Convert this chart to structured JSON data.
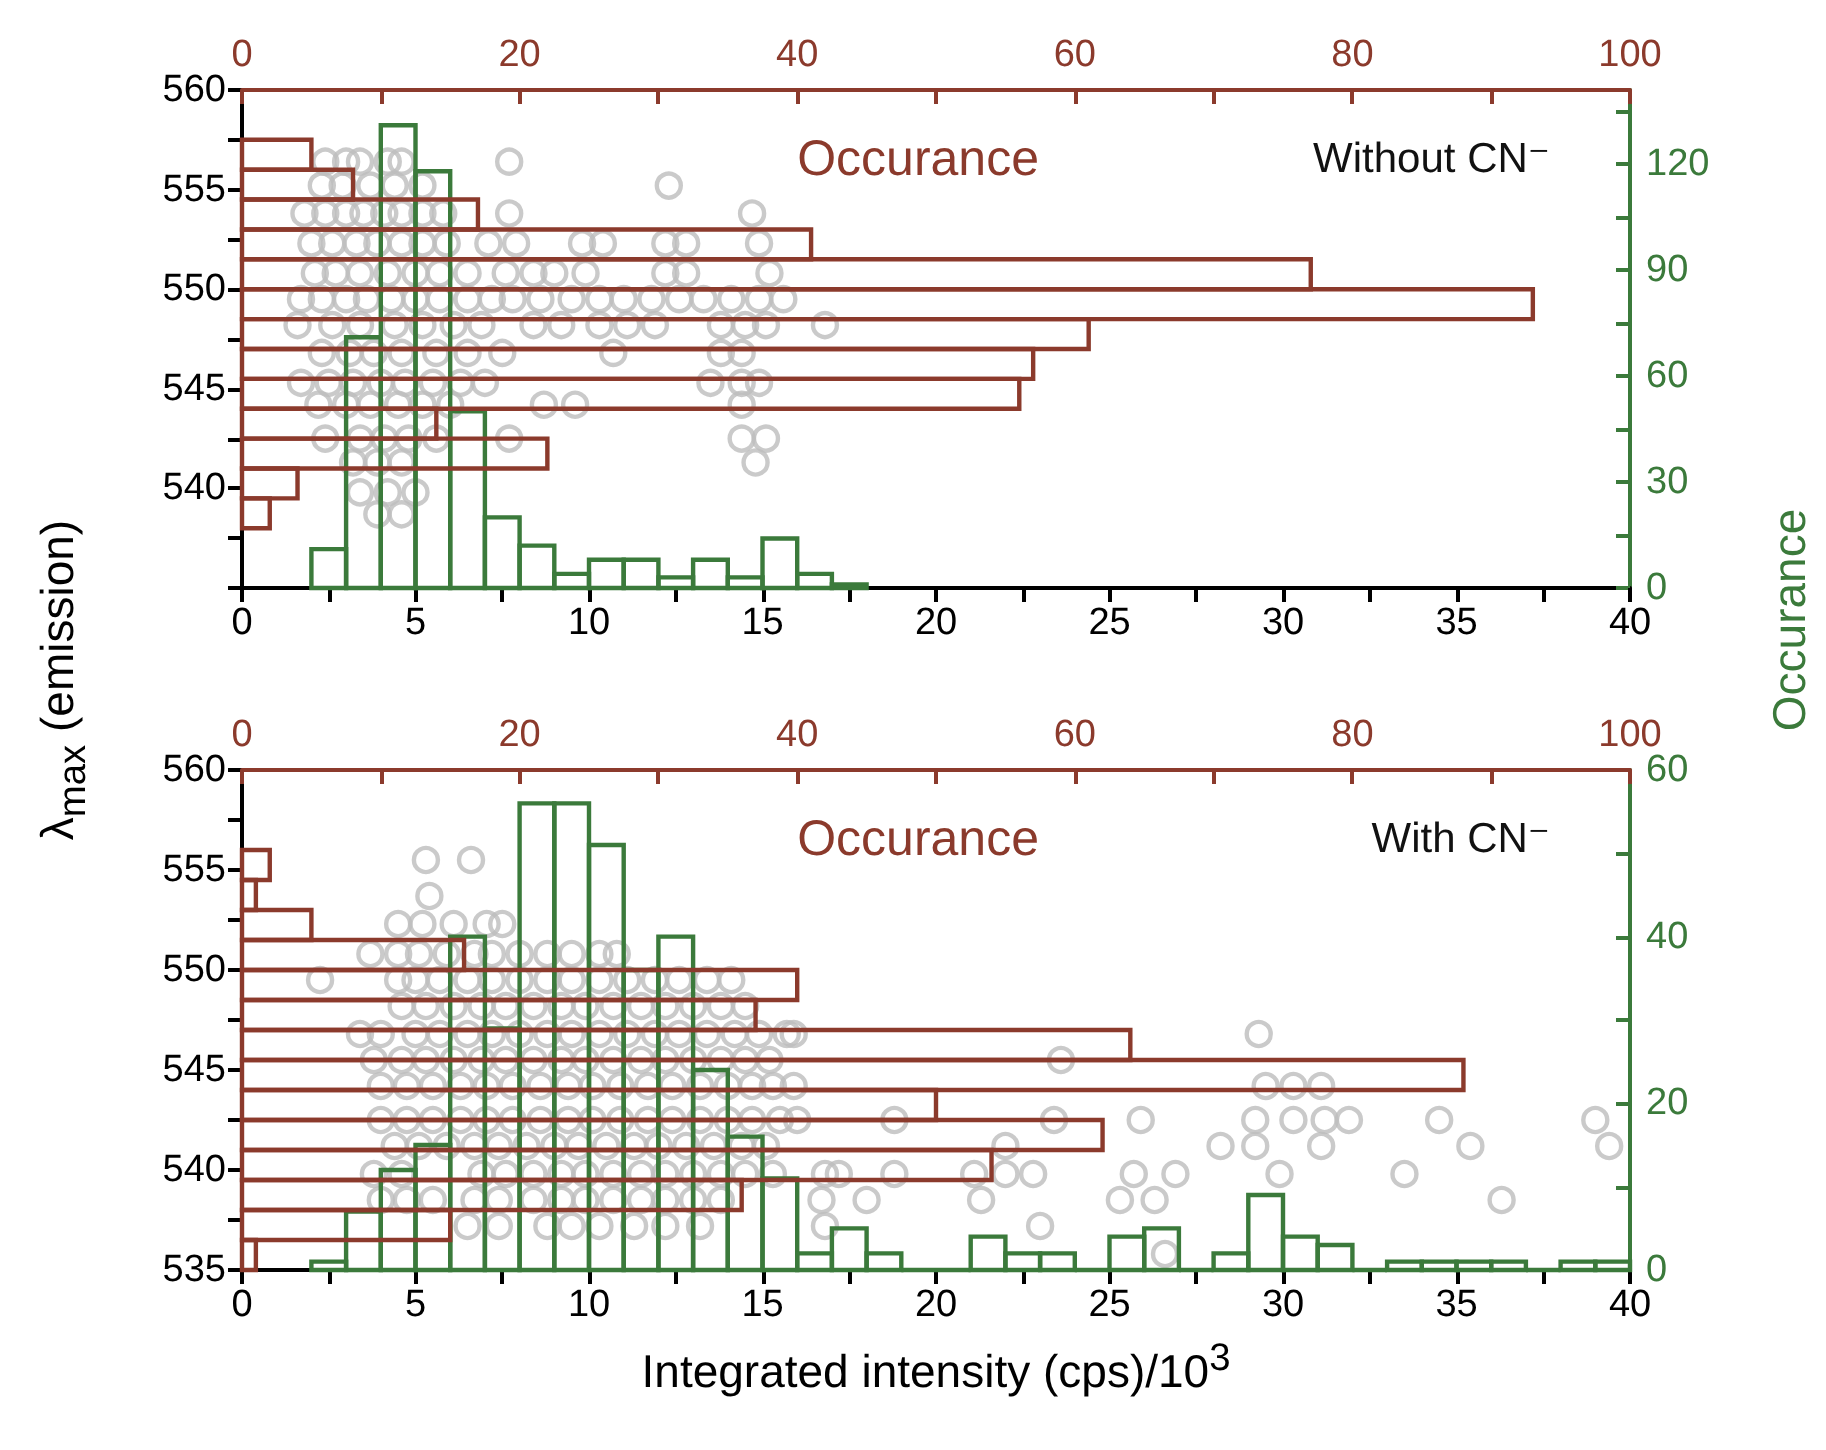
{
  "chart_data": [
    {
      "type": "scatter",
      "ylabel": "λ$_{max}$ (emission)",
      "annotations": [
        "Without CN⁻"
      ],
      "marker": "circle",
      "xlim": [
        0,
        40
      ],
      "xticks": [
        0,
        {
          "value": 2.5,
          "label": null
        },
        5,
        {
          "value": 7.5,
          "label": null
        },
        10,
        {
          "value": 12.5,
          "label": null
        },
        15,
        {
          "value": 17.5,
          "label": null
        },
        20,
        {
          "value": 22.5,
          "label": null
        },
        25,
        {
          "value": 27.5,
          "label": null
        },
        30,
        {
          "value": 32.5,
          "label": null
        },
        35,
        {
          "value": 37.5,
          "label": null
        },
        40
      ],
      "ylim": [
        535,
        560
      ],
      "yticks": [
        {
          "value": 535,
          "label": null
        },
        {
          "value": 537.5,
          "label": null
        },
        540,
        {
          "value": 542.5,
          "label": null
        },
        545,
        {
          "value": 547.5,
          "label": null
        },
        550,
        {
          "value": 552.5,
          "label": null
        },
        555,
        {
          "value": 557.5,
          "label": null
        },
        560
      ],
      "y2lim": [
        0,
        141
      ],
      "y2ticks": [
        0,
        {
          "value": 15,
          "label": null
        },
        30,
        {
          "value": 45,
          "label": null
        },
        60,
        {
          "value": 75,
          "label": null
        },
        90,
        {
          "value": 105,
          "label": null
        },
        120,
        {
          "value": 135,
          "label": null
        }
      ],
      "series": [
        {
          "color": "#bdbdbd",
          "x": [
            2.4,
            3,
            3.4,
            4.2,
            4.6,
            7.7,
            2.3,
            2.9,
            3.7,
            4.4,
            5.2,
            12.3,
            1.8,
            2.4,
            3,
            3.5,
            4.1,
            4.6,
            5.2,
            5.8,
            7.7,
            14.7,
            2,
            2.6,
            3.3,
            3.9,
            4.6,
            5.2,
            5.9,
            7.1,
            7.9,
            9.8,
            10.4,
            12.2,
            12.8,
            14.9,
            2.1,
            2.7,
            3.4,
            4.2,
            5,
            5.7,
            6.5,
            7.6,
            8.4,
            9,
            9.9,
            12.2,
            12.8,
            15.2,
            1.7,
            2.3,
            3,
            3.6,
            4.3,
            5,
            5.7,
            6.5,
            7.2,
            7.8,
            8.6,
            9.5,
            10.3,
            11,
            11.8,
            12.6,
            13.3,
            14.1,
            14.9,
            15.6,
            1.6,
            2.6,
            3.4,
            4.4,
            5.2,
            6.1,
            6.9,
            8.4,
            9.2,
            10.3,
            11.1,
            11.9,
            13.8,
            14.5,
            15.1,
            16.8,
            2.3,
            3.1,
            3.8,
            4.6,
            5.6,
            6.5,
            7.5,
            10.7,
            13.8,
            14.4,
            1.7,
            2.5,
            3.2,
            4,
            4.7,
            5.5,
            6.3,
            7,
            13.5,
            14.4,
            14.9,
            2.2,
            3,
            3.7,
            4.5,
            5.2,
            6,
            8.7,
            9.6,
            14.4,
            2.4,
            3.4,
            4.1,
            4.8,
            5.6,
            7.7,
            14.4,
            15.1,
            3.2,
            3.9,
            4.6,
            14.8,
            3.4,
            4.2,
            5,
            3.9,
            4.6
          ],
          "values": [
            556.4,
            556.4,
            556.4,
            556.4,
            556.4,
            556.4,
            555.2,
            555.2,
            555.2,
            555.2,
            555.2,
            555.2,
            553.8,
            553.8,
            553.8,
            553.8,
            553.8,
            553.8,
            553.8,
            553.8,
            553.8,
            553.8,
            552.3,
            552.3,
            552.3,
            552.3,
            552.3,
            552.3,
            552.3,
            552.3,
            552.3,
            552.3,
            552.3,
            552.3,
            552.3,
            552.3,
            550.8,
            550.8,
            550.8,
            550.8,
            550.8,
            550.8,
            550.8,
            550.8,
            550.8,
            550.8,
            550.8,
            550.8,
            550.8,
            550.8,
            549.5,
            549.5,
            549.5,
            549.5,
            549.5,
            549.5,
            549.5,
            549.5,
            549.5,
            549.5,
            549.5,
            549.5,
            549.5,
            549.5,
            549.5,
            549.5,
            549.5,
            549.5,
            549.5,
            549.5,
            548.2,
            548.2,
            548.2,
            548.2,
            548.2,
            548.2,
            548.2,
            548.2,
            548.2,
            548.2,
            548.2,
            548.2,
            548.2,
            548.2,
            548.2,
            548.2,
            546.8,
            546.8,
            546.8,
            546.8,
            546.8,
            546.8,
            546.8,
            546.8,
            546.8,
            546.8,
            545.3,
            545.3,
            545.3,
            545.3,
            545.3,
            545.3,
            545.3,
            545.3,
            545.3,
            545.3,
            545.3,
            544.2,
            544.2,
            544.2,
            544.2,
            544.2,
            544.2,
            544.2,
            544.2,
            544.2,
            542.5,
            542.5,
            542.5,
            542.5,
            542.5,
            542.5,
            542.5,
            542.5,
            541.3,
            541.3,
            541.3,
            541.3,
            539.8,
            539.8,
            539.8,
            538.7,
            538.7
          ]
        },
        {
          "type": "histogram",
          "axis": "y2",
          "color": "#3b7a3b",
          "bins": [
            2,
            3,
            4,
            5,
            6,
            7,
            8,
            9,
            10,
            11,
            12,
            13,
            14,
            15,
            16,
            17,
            18
          ],
          "values": [
            11,
            71,
            131,
            118,
            50,
            20,
            12,
            4,
            8,
            8,
            3,
            8,
            3,
            14,
            4,
            1
          ]
        }
      ]
    },
    {
      "type": "histogram",
      "orientation": "horizontal",
      "xlabel": "Occurance",
      "color": "#8b3a2c",
      "tick_labels": "x",
      "xlim": [
        0,
        100
      ],
      "xticks": [
        0,
        {
          "value": 10,
          "label": null
        },
        20,
        {
          "value": 30,
          "label": null
        },
        40,
        {
          "value": 50,
          "label": null
        },
        60,
        {
          "value": 70,
          "label": null
        },
        80,
        {
          "value": 90,
          "label": null
        },
        100
      ],
      "ylim": [
        535,
        560
      ],
      "bins": [
        538,
        539.5,
        541,
        542.5,
        544,
        545.5,
        547,
        548.5,
        550,
        551.5,
        553,
        554.5,
        556,
        557.5
      ],
      "values": [
        2,
        4,
        22,
        14,
        56,
        57,
        61,
        93,
        77,
        41,
        17,
        8,
        5
      ]
    },
    {
      "type": "scatter",
      "xlabel": "Integrated intensity (cps)/10$^{3}$",
      "y2label": "Occurance",
      "annotations": [
        "With CN⁻"
      ],
      "marker": "circle",
      "xlim": [
        0,
        40
      ],
      "xticks": [
        0,
        {
          "value": 2.5,
          "label": null
        },
        5,
        {
          "value": 7.5,
          "label": null
        },
        10,
        {
          "value": 12.5,
          "label": null
        },
        15,
        {
          "value": 17.5,
          "label": null
        },
        20,
        {
          "value": 22.5,
          "label": null
        },
        25,
        {
          "value": 27.5,
          "label": null
        },
        30,
        {
          "value": 32.5,
          "label": null
        },
        35,
        {
          "value": 37.5,
          "label": null
        },
        40
      ],
      "ylim": [
        535,
        560
      ],
      "yticks": [
        535,
        {
          "value": 537.5,
          "label": null
        },
        540,
        {
          "value": 542.5,
          "label": null
        },
        545,
        {
          "value": 547.5,
          "label": null
        },
        550,
        {
          "value": 552.5,
          "label": null
        },
        555,
        {
          "value": 557.5,
          "label": null
        },
        560
      ],
      "y2lim": [
        0,
        60
      ],
      "y2ticks": [
        0,
        {
          "value": 10,
          "label": null
        },
        20,
        {
          "value": 30,
          "label": null
        },
        40,
        {
          "value": 50,
          "label": null
        },
        60
      ],
      "series": [
        {
          "color": "#bdbdbd",
          "x": [
            5.3,
            6.6,
            5.4,
            4.5,
            5.2,
            6.1,
            7.05,
            7.5,
            3.7,
            4.5,
            5.1,
            5.9,
            6.7,
            7.2,
            8,
            8.8,
            9.5,
            10.3,
            10.8,
            2.25,
            4.5,
            5,
            5.7,
            6.5,
            7.2,
            8,
            8.8,
            9.5,
            10.3,
            11.1,
            11.9,
            12.6,
            13.4,
            14.1,
            4.6,
            5.3,
            6.1,
            6.9,
            7.6,
            8.4,
            9.2,
            9.9,
            10.7,
            11.5,
            12.2,
            13,
            13.8,
            14.5,
            3.4,
            4,
            5,
            5.7,
            6.5,
            7.2,
            8,
            8.8,
            9.5,
            10.3,
            11.1,
            11.9,
            12.6,
            13.4,
            14.2,
            14.9,
            15.7,
            15.9,
            29.3,
            3.8,
            4.6,
            5.3,
            6.1,
            6.9,
            7.6,
            8.4,
            9.2,
            9.9,
            10.7,
            11.5,
            12.2,
            13,
            13.8,
            14.5,
            15.2,
            23.6,
            4,
            4.75,
            5.5,
            6.3,
            7.05,
            7.8,
            8.6,
            9.4,
            10.1,
            10.9,
            11.7,
            12.4,
            13.2,
            14,
            14.7,
            15.3,
            15.9,
            29.5,
            30.3,
            31.1,
            4,
            4.75,
            5.5,
            6.3,
            7.05,
            7.8,
            8.6,
            9.4,
            10.1,
            10.9,
            11.7,
            12.4,
            13.2,
            14,
            14.7,
            15.5,
            16,
            18.8,
            23.4,
            25.9,
            29.2,
            30.3,
            31.2,
            31.9,
            34.5,
            39,
            4.4,
            5.1,
            5.9,
            6.7,
            7.4,
            8.2,
            9,
            9.7,
            10.5,
            11.3,
            12,
            12.8,
            13.6,
            14.4,
            15.1,
            22,
            28.2,
            29.2,
            31.1,
            35.4,
            39.4,
            3.8,
            4.6,
            6.9,
            7.6,
            8.4,
            9.2,
            9.9,
            10.7,
            11.5,
            12.2,
            13,
            13.8,
            14.5,
            15.3,
            16.8,
            17.2,
            18.8,
            21.1,
            22,
            22.8,
            25.7,
            26.9,
            29.9,
            33.5,
            4,
            4.75,
            5.5,
            6.7,
            7.4,
            8.4,
            9.2,
            9.9,
            10.7,
            11.5,
            12.2,
            13,
            13.8,
            16.7,
            18,
            21.3,
            25.3,
            26.3,
            36.3,
            6.5,
            7.4,
            8.8,
            9.5,
            10.3,
            11.3,
            12.2,
            13.2,
            16.8,
            23,
            26.6
          ],
          "values": [
            555.5,
            555.5,
            553.7,
            552.3,
            552.3,
            552.3,
            552.3,
            552.3,
            550.8,
            550.8,
            550.8,
            550.8,
            550.8,
            550.8,
            550.8,
            550.8,
            550.8,
            550.8,
            550.8,
            549.5,
            549.5,
            549.5,
            549.5,
            549.5,
            549.5,
            549.5,
            549.5,
            549.5,
            549.5,
            549.5,
            549.5,
            549.5,
            549.5,
            549.5,
            548.2,
            548.2,
            548.2,
            548.2,
            548.2,
            548.2,
            548.2,
            548.2,
            548.2,
            548.2,
            548.2,
            548.2,
            548.2,
            548.2,
            546.8,
            546.8,
            546.8,
            546.8,
            546.8,
            546.8,
            546.8,
            546.8,
            546.8,
            546.8,
            546.8,
            546.8,
            546.8,
            546.8,
            546.8,
            546.8,
            546.8,
            546.8,
            546.8,
            545.5,
            545.5,
            545.5,
            545.5,
            545.5,
            545.5,
            545.5,
            545.5,
            545.5,
            545.5,
            545.5,
            545.5,
            545.5,
            545.5,
            545.5,
            545.5,
            545.5,
            544.2,
            544.2,
            544.2,
            544.2,
            544.2,
            544.2,
            544.2,
            544.2,
            544.2,
            544.2,
            544.2,
            544.2,
            544.2,
            544.2,
            544.2,
            544.2,
            544.2,
            544.2,
            544.2,
            544.2,
            542.5,
            542.5,
            542.5,
            542.5,
            542.5,
            542.5,
            542.5,
            542.5,
            542.5,
            542.5,
            542.5,
            542.5,
            542.5,
            542.5,
            542.5,
            542.5,
            542.5,
            542.5,
            542.5,
            542.5,
            542.5,
            542.5,
            542.5,
            542.5,
            542.5,
            542.5,
            541.2,
            541.2,
            541.2,
            541.2,
            541.2,
            541.2,
            541.2,
            541.2,
            541.2,
            541.2,
            541.2,
            541.2,
            541.2,
            541.2,
            541.2,
            541.2,
            541.2,
            541.2,
            541.2,
            541.2,
            541.2,
            539.8,
            539.8,
            539.8,
            539.8,
            539.8,
            539.8,
            539.8,
            539.8,
            539.8,
            539.8,
            539.8,
            539.8,
            539.8,
            539.8,
            539.8,
            539.8,
            539.8,
            539.8,
            539.8,
            539.8,
            539.8,
            539.8,
            539.8,
            539.8,
            538.5,
            538.5,
            538.5,
            538.5,
            538.5,
            538.5,
            538.5,
            538.5,
            538.5,
            538.5,
            538.5,
            538.5,
            538.5,
            538.5,
            538.5,
            538.5,
            538.5,
            538.5,
            538.5,
            537.2,
            537.2,
            537.2,
            537.2,
            537.2,
            537.2,
            537.2,
            537.2,
            537.2,
            537.2,
            535.8
          ]
        },
        {
          "type": "histogram",
          "axis": "y2",
          "color": "#3b7a3b",
          "bins": [
            2,
            3,
            4,
            5,
            6,
            7,
            8,
            9,
            10,
            11,
            12,
            13,
            14,
            15,
            16,
            17,
            18,
            19,
            20,
            21,
            22,
            23,
            24,
            25,
            26,
            27,
            28,
            29,
            30,
            31,
            32,
            33,
            34,
            35,
            36,
            37,
            38,
            39,
            40
          ],
          "values": [
            1,
            7,
            12,
            15,
            40,
            29,
            56,
            56,
            51,
            36,
            40,
            24,
            16,
            11,
            2,
            5,
            2,
            0,
            0,
            4,
            2,
            2,
            0,
            4,
            5,
            0,
            2,
            9,
            4,
            3,
            0,
            1,
            1,
            1,
            1,
            0,
            1,
            1
          ]
        }
      ]
    },
    {
      "type": "histogram",
      "orientation": "horizontal",
      "xlabel": "Occurance",
      "color": "#8b3a2c",
      "tick_labels": "x",
      "xlim": [
        0,
        100
      ],
      "xticks": [
        0,
        {
          "value": 10,
          "label": null
        },
        20,
        {
          "value": 30,
          "label": null
        },
        40,
        {
          "value": 50,
          "label": null
        },
        60,
        {
          "value": 70,
          "label": null
        },
        80,
        {
          "value": 90,
          "label": null
        },
        100
      ],
      "ylim": [
        535,
        560
      ],
      "bins": [
        535,
        536.5,
        538,
        539.5,
        541,
        542.5,
        544,
        545.5,
        547,
        548.5,
        550,
        551.5,
        553,
        554.5,
        556
      ],
      "values": [
        1,
        15,
        36,
        54,
        62,
        50,
        88,
        64,
        37,
        40,
        16,
        5,
        1,
        2
      ]
    }
  ]
}
